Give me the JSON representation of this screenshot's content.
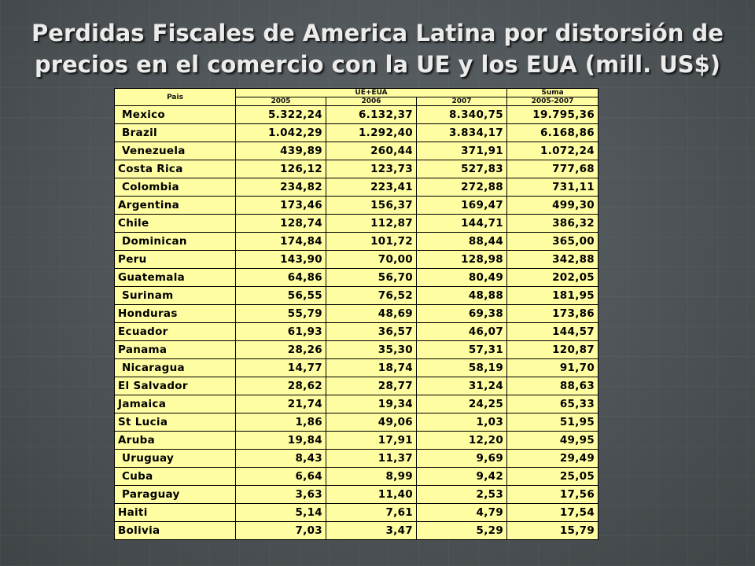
{
  "title": {
    "line1": "Perdidas Fiscales  de America Latina por distorsión de",
    "line2": "precios en el comercio con la UE y los EUA  (mill. US$)"
  },
  "table": {
    "header": {
      "country_col": "Pais",
      "group_ue_eua": "UE+EUA",
      "group_suma": "Suma",
      "year_2005": "2005",
      "year_2006": "2006",
      "year_2007": "2007",
      "range_2005_2007": "2005-2007"
    },
    "rows": [
      {
        "country": " Mexico",
        "y2005": "5.322,24",
        "y2006": "6.132,37",
        "y2007": "8.340,75",
        "total": "19.795,36"
      },
      {
        "country": " Brazil",
        "y2005": "1.042,29",
        "y2006": "1.292,40",
        "y2007": "3.834,17",
        "total": "6.168,86"
      },
      {
        "country": " Venezuela",
        "y2005": "439,89",
        "y2006": "260,44",
        "y2007": "371,91",
        "total": "1.072,24"
      },
      {
        "country": "Costa Rica",
        "y2005": "126,12",
        "y2006": "123,73",
        "y2007": "527,83",
        "total": "777,68"
      },
      {
        "country": " Colombia",
        "y2005": "234,82",
        "y2006": "223,41",
        "y2007": "272,88",
        "total": "731,11"
      },
      {
        "country": "Argentina",
        "y2005": "173,46",
        "y2006": "156,37",
        "y2007": "169,47",
        "total": "499,30"
      },
      {
        "country": "Chile",
        "y2005": "128,74",
        "y2006": "112,87",
        "y2007": "144,71",
        "total": "386,32"
      },
      {
        "country": " Dominican",
        "y2005": "174,84",
        "y2006": "101,72",
        "y2007": "88,44",
        "total": "365,00"
      },
      {
        "country": "Peru",
        "y2005": "143,90",
        "y2006": "70,00",
        "y2007": "128,98",
        "total": "342,88"
      },
      {
        "country": "Guatemala",
        "y2005": "64,86",
        "y2006": "56,70",
        "y2007": "80,49",
        "total": "202,05"
      },
      {
        "country": " Surinam",
        "y2005": "56,55",
        "y2006": "76,52",
        "y2007": "48,88",
        "total": "181,95"
      },
      {
        "country": "Honduras",
        "y2005": "55,79",
        "y2006": "48,69",
        "y2007": "69,38",
        "total": "173,86"
      },
      {
        "country": "Ecuador",
        "y2005": "61,93",
        "y2006": "36,57",
        "y2007": "46,07",
        "total": "144,57"
      },
      {
        "country": "Panama",
        "y2005": "28,26",
        "y2006": "35,30",
        "y2007": "57,31",
        "total": "120,87"
      },
      {
        "country": " Nicaragua",
        "y2005": "14,77",
        "y2006": "18,74",
        "y2007": "58,19",
        "total": "91,70"
      },
      {
        "country": "El Salvador",
        "y2005": "28,62",
        "y2006": "28,77",
        "y2007": "31,24",
        "total": "88,63"
      },
      {
        "country": "Jamaica",
        "y2005": "21,74",
        "y2006": "19,34",
        "y2007": "24,25",
        "total": "65,33"
      },
      {
        "country": "St Lucia",
        "y2005": "1,86",
        "y2006": "49,06",
        "y2007": "1,03",
        "total": "51,95"
      },
      {
        "country": "Aruba",
        "y2005": "19,84",
        "y2006": "17,91",
        "y2007": "12,20",
        "total": "49,95"
      },
      {
        "country": " Uruguay",
        "y2005": "8,43",
        "y2006": "11,37",
        "y2007": "9,69",
        "total": "29,49"
      },
      {
        "country": " Cuba",
        "y2005": "6,64",
        "y2006": "8,99",
        "y2007": "9,42",
        "total": "25,05"
      },
      {
        "country": " Paraguay",
        "y2005": "3,63",
        "y2006": "11,40",
        "y2007": "2,53",
        "total": "17,56"
      },
      {
        "country": "Haiti",
        "y2005": "5,14",
        "y2006": "7,61",
        "y2007": "4,79",
        "total": "17,54"
      },
      {
        "country": "Bolivia",
        "y2005": "7,03",
        "y2006": "3,47",
        "y2007": "5,29",
        "total": "15,79"
      }
    ]
  }
}
